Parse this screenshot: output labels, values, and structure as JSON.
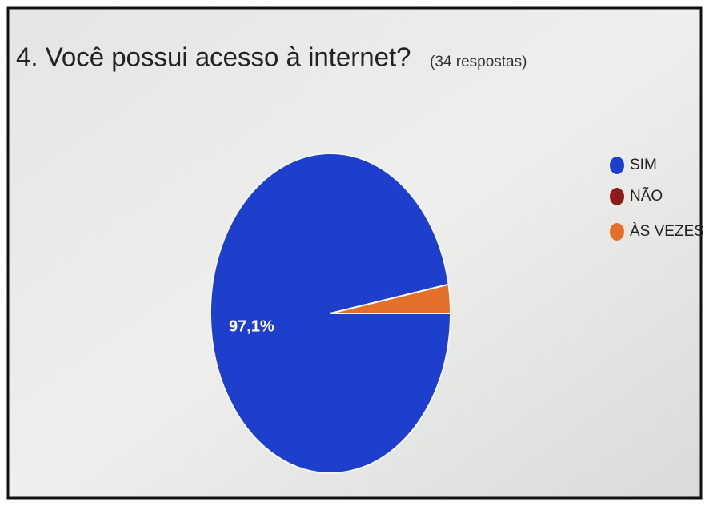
{
  "chart_data": {
    "type": "pie",
    "title": "4. Você possui acesso à internet?",
    "subtitle": "(34 respostas)",
    "categories": [
      "SIM",
      "NÃO",
      "ÀS VEZES"
    ],
    "values": [
      97.1,
      0,
      2.9
    ],
    "value_labels": [
      "97,1%",
      null,
      null
    ],
    "colors": [
      "#1e3fcc",
      "#8a1c1c",
      "#e2702a"
    ],
    "legend": "right"
  }
}
